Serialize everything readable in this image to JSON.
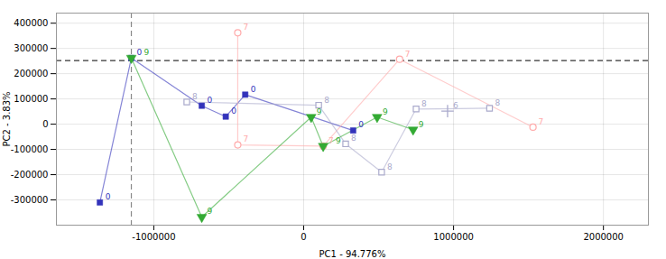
{
  "chart_data": {
    "type": "line",
    "xlabel": "PC1 - 94.776%",
    "ylabel": "PC2 - 3.83%",
    "xlim": [
      -1650000,
      2300000
    ],
    "ylim": [
      -400000,
      440000
    ],
    "xticks": [
      -1000000,
      0,
      1000000,
      2000000
    ],
    "yticks": [
      -300000,
      -200000,
      -100000,
      0,
      100000,
      200000,
      300000,
      400000
    ],
    "grid": true,
    "reference_lines": [
      {
        "axis": "y",
        "value": 252000,
        "color": "#333333",
        "line_style": "dashed"
      },
      {
        "axis": "x",
        "value": -1150000,
        "color": "#888888",
        "line_style": "dashed"
      }
    ],
    "series": [
      {
        "name": "0",
        "type": "line",
        "color": "#3333bb",
        "marker": "square",
        "x": [
          -1360000,
          -1150000,
          -680000,
          -520000,
          -390000,
          330000
        ],
        "values": [
          -310000,
          262000,
          73000,
          30000,
          117000,
          -25000
        ]
      },
      {
        "name": "7",
        "type": "line",
        "color": "#ffaaaa",
        "marker": "circle-open",
        "x": [
          -440000,
          -440000,
          130000,
          640000,
          1530000
        ],
        "values": [
          362000,
          -82000,
          -87000,
          257000,
          -12000
        ]
      },
      {
        "name": "8",
        "type": "line",
        "color": "#aaaacc",
        "marker": "square-open",
        "x": [
          -780000,
          100000,
          280000,
          520000,
          750000,
          1240000
        ],
        "values": [
          88000,
          75000,
          -78000,
          -190000,
          60000,
          63000
        ]
      },
      {
        "name": "9",
        "type": "line",
        "color": "#33aa33",
        "marker": "triangle-down",
        "x": [
          -1150000,
          -680000,
          50000,
          130000,
          490000,
          730000
        ],
        "values": [
          262000,
          -368000,
          28000,
          -87000,
          28000,
          -22000
        ]
      },
      {
        "name": "6",
        "type": "scatter",
        "color": "#aaaacc",
        "marker": "plus",
        "x": [
          960000
        ],
        "values": [
          52000
        ]
      }
    ]
  }
}
